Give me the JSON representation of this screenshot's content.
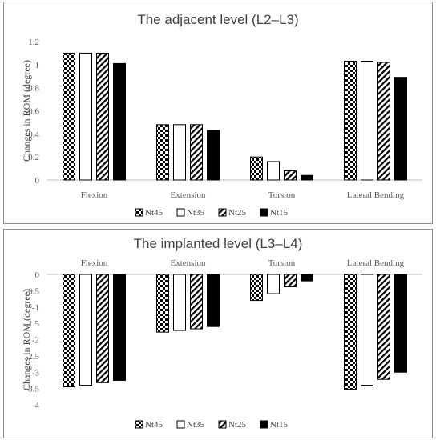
{
  "chart_data": [
    {
      "type": "bar",
      "title": "The adjacent level (L2–L3)",
      "ylabel": "Changes in ROM (degree)",
      "xlabel": "",
      "categories": [
        "Flexion",
        "Extension",
        "Torsion",
        "Lateral Bending"
      ],
      "ylim": [
        0,
        1.2
      ],
      "yticks": [
        0,
        0.2,
        0.4,
        0.6,
        0.8,
        1,
        1.2
      ],
      "ytick_labels": [
        "0",
        "0.2",
        "0.4",
        "0.6",
        "0.8",
        "1",
        "1.2"
      ],
      "category_label_position": "bottom",
      "grid": false,
      "legend_position": "bottom",
      "series": [
        {
          "name": "Nt45",
          "pattern": "checker",
          "values": [
            1.1,
            0.48,
            0.2,
            1.03
          ]
        },
        {
          "name": "Nt35",
          "pattern": "white",
          "values": [
            1.1,
            0.48,
            0.16,
            1.03
          ]
        },
        {
          "name": "Nt25",
          "pattern": "diagonal",
          "values": [
            1.1,
            0.48,
            0.08,
            1.02
          ]
        },
        {
          "name": "Nt15",
          "pattern": "black",
          "values": [
            1.01,
            0.43,
            0.04,
            0.89
          ]
        }
      ]
    },
    {
      "type": "bar",
      "title": "The implanted level (L3–L4)",
      "ylabel": "Changes in ROM (degree)",
      "xlabel": "",
      "categories": [
        "Flexion",
        "Extension",
        "Torsion",
        "Lateral Bending"
      ],
      "ylim": [
        -4,
        0
      ],
      "yticks": [
        0,
        -0.5,
        -1,
        -1.5,
        -2,
        -2.5,
        -3,
        -3.5,
        -4
      ],
      "ytick_labels": [
        "0",
        "-0.5",
        "-1",
        "-1.5",
        "-2",
        "-2.5",
        "-3",
        "-3.5",
        "-4"
      ],
      "category_label_position": "top",
      "grid": false,
      "legend_position": "bottom",
      "series": [
        {
          "name": "Nt45",
          "pattern": "checker",
          "values": [
            -3.45,
            -1.77,
            -0.8,
            -3.52
          ]
        },
        {
          "name": "Nt35",
          "pattern": "white",
          "values": [
            -3.4,
            -1.72,
            -0.59,
            -3.4
          ]
        },
        {
          "name": "Nt25",
          "pattern": "diagonal",
          "values": [
            -3.32,
            -1.67,
            -0.38,
            -3.22
          ]
        },
        {
          "name": "Nt15",
          "pattern": "black",
          "values": [
            -3.25,
            -1.6,
            -0.2,
            -3.0
          ]
        }
      ]
    }
  ]
}
